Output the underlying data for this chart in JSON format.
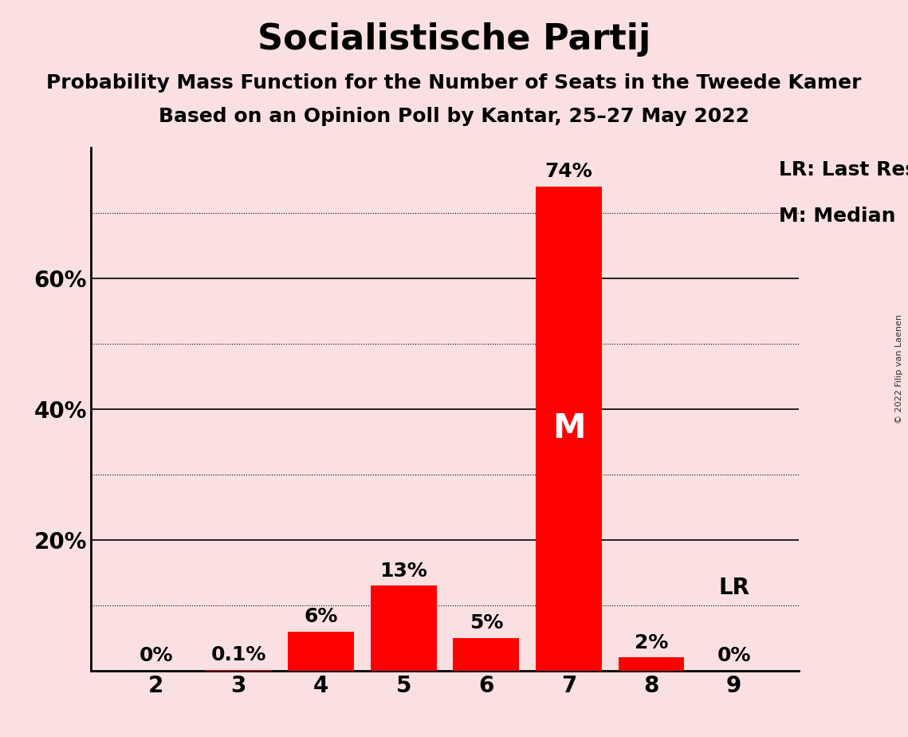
{
  "title": "Socialistische Partij",
  "subtitle1": "Probability Mass Function for the Number of Seats in the Tweede Kamer",
  "subtitle2": "Based on an Opinion Poll by Kantar, 25–27 May 2022",
  "watermark": "© 2022 Filip van Laenen",
  "categories": [
    2,
    3,
    4,
    5,
    6,
    7,
    8,
    9
  ],
  "values": [
    0.0,
    0.1,
    6.0,
    13.0,
    5.0,
    74.0,
    2.0,
    0.0
  ],
  "labels": [
    "0%",
    "0.1%",
    "6%",
    "13%",
    "5%",
    "74%",
    "2%",
    "0%"
  ],
  "bar_color": "#FF0000",
  "background_color": "#FAE0E0",
  "median_bar": 7,
  "median_label": "M",
  "lr_bar": 9,
  "lr_label": "LR",
  "legend_lr": "LR: Last Result",
  "legend_m": "M: Median",
  "ylim": [
    0,
    80
  ],
  "solid_grid": [
    20,
    40,
    60
  ],
  "dotted_grid": [
    10,
    30,
    50,
    70
  ],
  "ytick_positions": [
    20,
    40,
    60
  ],
  "ytick_labels": [
    "20%",
    "40%",
    "60%"
  ],
  "title_fontsize": 32,
  "subtitle_fontsize": 18,
  "label_fontsize": 18,
  "tick_fontsize": 20,
  "median_fontsize": 30,
  "lr_fontsize": 20,
  "legend_fontsize": 18
}
